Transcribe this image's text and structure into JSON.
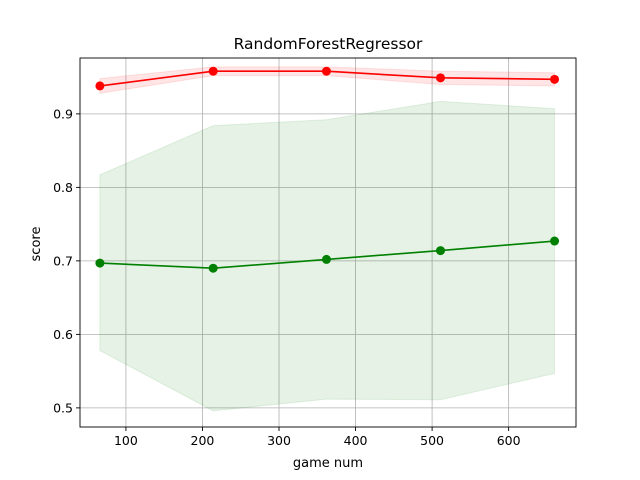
{
  "chart_data": {
    "type": "line",
    "title": "RandomForestRegressor",
    "xlabel": "game num",
    "ylabel": "score",
    "xlim": [
      40,
      688
    ],
    "ylim": [
      0.474,
      0.976
    ],
    "xticks": [
      100,
      200,
      300,
      400,
      500,
      600
    ],
    "yticks": [
      0.5,
      0.6,
      0.7,
      0.8,
      0.9
    ],
    "grid": true,
    "x": [
      66,
      214,
      362,
      511,
      660
    ],
    "series": [
      {
        "color": "#ff0000",
        "values": [
          0.938,
          0.958,
          0.958,
          0.949,
          0.947
        ],
        "band_lower": [
          0.928,
          0.952,
          0.952,
          0.94,
          0.938
        ],
        "band_upper": [
          0.948,
          0.964,
          0.964,
          0.958,
          0.956
        ],
        "band_color": "#ff0000"
      },
      {
        "color": "#008000",
        "values": [
          0.697,
          0.69,
          0.702,
          0.714,
          0.727
        ],
        "band_lower": [
          0.578,
          0.496,
          0.512,
          0.511,
          0.547
        ],
        "band_upper": [
          0.817,
          0.884,
          0.892,
          0.917,
          0.907
        ],
        "band_color": "#008000"
      }
    ]
  }
}
